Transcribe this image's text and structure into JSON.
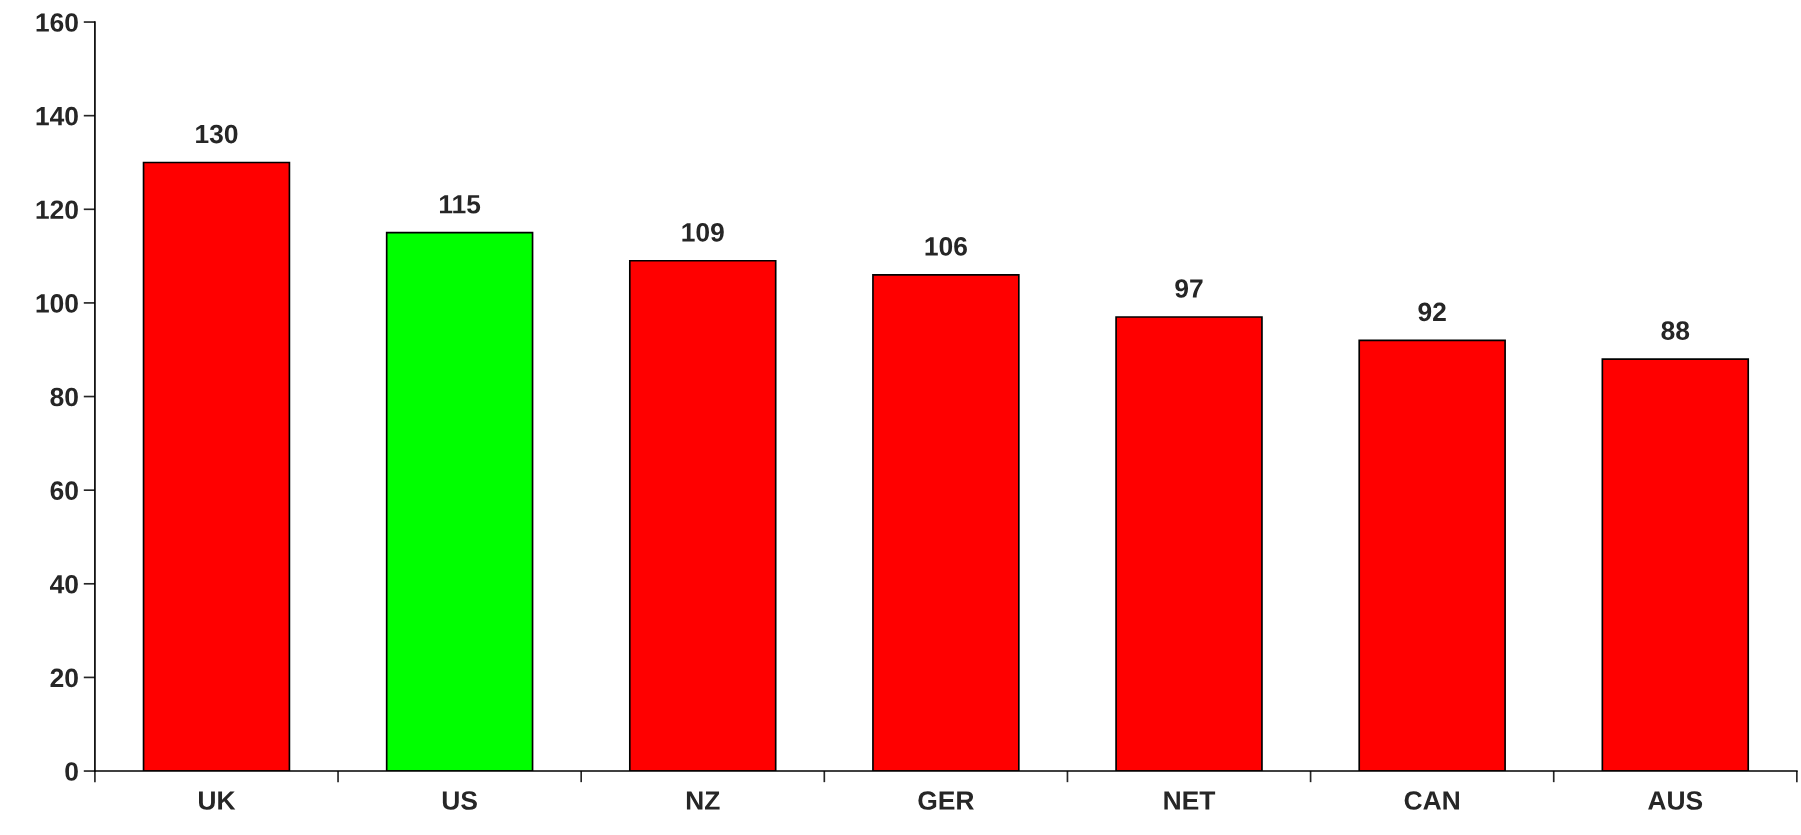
{
  "chart_data": {
    "type": "bar",
    "categories": [
      "UK",
      "US",
      "NZ",
      "GER",
      "NET",
      "CAN",
      "AUS"
    ],
    "values": [
      130,
      115,
      109,
      106,
      97,
      92,
      88
    ],
    "colors": [
      "#ff0000",
      "#00ff00",
      "#ff0000",
      "#ff0000",
      "#ff0000",
      "#ff0000",
      "#ff0000"
    ],
    "ylim": [
      0,
      160
    ],
    "yticks": [
      0,
      20,
      40,
      60,
      80,
      100,
      120,
      140,
      160
    ],
    "data_labels": true,
    "grid": false,
    "legend": false
  }
}
